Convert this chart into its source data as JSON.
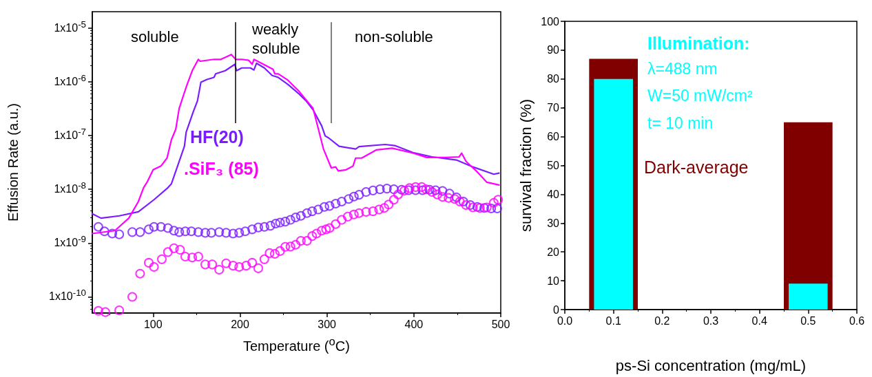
{
  "chart_data": [
    {
      "type": "line",
      "xlabel": "Temperature ($^{o}$C)",
      "ylabel": "Effusion Rate (a.u.)",
      "log": "y",
      "grid": false,
      "legend": false,
      "xlim": [
        30,
        500
      ],
      "xticks": [
        100,
        200,
        300,
        400,
        500
      ],
      "ylim": [
        5e-11,
        2e-05
      ],
      "yticks": [
        {
          "value": 1e-10,
          "label": "1x10$^{-10}$"
        },
        {
          "value": 1e-09,
          "label": "1x10$^{-9}$"
        },
        {
          "value": 1e-08,
          "label": "1x10$^{-8}$"
        },
        {
          "value": 1e-07,
          "label": "1x10$^{-7}$"
        },
        {
          "value": 1e-06,
          "label": "1x10$^{-6}$"
        },
        {
          "value": 1e-05,
          "label": "1x10$^{-5}$"
        }
      ],
      "annotations": [
        "soluble",
        "weakly soluble",
        "non-soluble"
      ],
      "ref_lines": [
        {
          "axis": "x",
          "value": 195,
          "color": "#000000"
        },
        {
          "axis": "x",
          "value": 305,
          "color": "#555555"
        }
      ],
      "series": [
        {
          "name": "HF(20)",
          "type": "line",
          "color": "#7a1cff",
          "marker": "none",
          "line_style": "solid",
          "x": [
            30,
            40,
            61,
            83,
            101,
            117,
            121,
            136,
            138,
            146,
            151,
            155,
            162,
            170,
            172,
            183,
            194,
            196,
            202,
            212,
            216,
            219,
            228,
            237,
            244,
            255,
            268,
            276,
            284,
            294,
            298,
            302,
            314,
            333,
            337,
            367,
            378,
            399,
            421,
            449,
            468,
            492,
            498
          ],
          "values": [
            3.5e-09,
            2.9e-09,
            3.2e-09,
            3.8e-09,
            6.4e-09,
            1.07e-08,
            1.26e-08,
            6.3e-08,
            1.15e-07,
            2.7e-07,
            4.4e-07,
            9.8e-07,
            1.1e-06,
            1.2e-06,
            1.4e-06,
            1.6e-06,
            2.1e-06,
            1.6e-06,
            1.8e-06,
            1.8e-06,
            1.65e-06,
            2.2e-06,
            1.8e-06,
            1.3e-06,
            1.2e-06,
            8.9e-07,
            5.9e-07,
            4.4e-07,
            3e-07,
            1.5e-07,
            9.8e-08,
            9e-08,
            6.3e-08,
            5.6e-08,
            6.2e-08,
            6.8e-08,
            6.5e-08,
            4.8e-08,
            4e-08,
            3.5e-08,
            2.6e-08,
            1.9e-08,
            2e-08
          ]
        },
        {
          "name": ".SiF₃ (85)",
          "type": "line",
          "color": "#ff00ff",
          "marker": "none",
          "line_style": "solid",
          "x": [
            30,
            56,
            72,
            83,
            89,
            93,
            100,
            109,
            116,
            121,
            126,
            130,
            138,
            145,
            152,
            154,
            170,
            178,
            190,
            195,
            202,
            210,
            214,
            216,
            238,
            240,
            244,
            255,
            268,
            284,
            288,
            296,
            305,
            310,
            313,
            322,
            330,
            333,
            340,
            357,
            375,
            399,
            415,
            437,
            452,
            455,
            460,
            473,
            484,
            498
          ],
          "values": [
            1.5e-09,
            1.7e-09,
            2.9e-09,
            5.9e-09,
            1.07e-08,
            1.35e-08,
            2.3e-08,
            2.7e-08,
            3.8e-08,
            8.3e-08,
            1.3e-07,
            3.2e-07,
            7.9e-07,
            1.6e-06,
            2.6e-06,
            2.4e-06,
            2.6e-06,
            2.6e-06,
            3.2e-06,
            2.6e-06,
            2.6e-06,
            2.5e-06,
            2.1e-06,
            2.6e-06,
            1.7e-06,
            1.4e-06,
            1.4e-06,
            1.07e-06,
            6.6e-07,
            3.2e-07,
            1.8e-07,
            5.6e-08,
            2.5e-08,
            2.6e-08,
            2.2e-08,
            2.3e-08,
            2.7e-08,
            3.8e-08,
            3.8e-08,
            5.4e-08,
            5.8e-08,
            4.7e-08,
            3.9e-08,
            3.9e-08,
            4e-08,
            4.7e-08,
            3.3e-08,
            2.1e-08,
            1.35e-08,
            1.2e-08
          ]
        },
        {
          "type": "scatter",
          "color": "#7a1cff",
          "marker": "circle",
          "x": [
            37,
            44,
            53,
            61,
            76,
            85,
            95,
            101,
            109,
            117,
            124,
            130,
            137,
            144,
            152,
            160,
            167,
            176,
            184,
            192,
            199,
            206,
            214,
            221,
            228,
            235,
            241,
            246,
            252,
            258,
            264,
            270,
            277,
            283,
            290,
            297,
            303,
            310,
            317,
            325,
            331,
            337,
            345,
            353,
            361,
            369,
            377,
            386,
            394,
            402,
            410,
            418,
            425,
            433,
            441,
            449,
            457,
            465,
            473,
            481,
            489,
            496
          ],
          "values": [
            2e-09,
            1.65e-09,
            1.5e-09,
            1.45e-09,
            1.6e-09,
            1.6e-09,
            1.8e-09,
            2e-09,
            2e-09,
            1.9e-09,
            1.7e-09,
            1.6e-09,
            1.65e-09,
            1.65e-09,
            1.6e-09,
            1.55e-09,
            1.55e-09,
            1.6e-09,
            1.55e-09,
            1.5e-09,
            1.55e-09,
            1.65e-09,
            1.8e-09,
            1.95e-09,
            2e-09,
            2.1e-09,
            2.3e-09,
            2.4e-09,
            2.5e-09,
            2.7e-09,
            3e-09,
            3.2e-09,
            3.6e-09,
            3.9e-09,
            4.2e-09,
            4.7e-09,
            4.9e-09,
            5.4e-09,
            5.9e-09,
            6.6e-09,
            7.3e-09,
            7.9e-09,
            8.9e-09,
            9.5e-09,
            1e-08,
            1.03e-08,
            1e-08,
            9.8e-09,
            9.6e-09,
            9.6e-09,
            9.6e-09,
            9.8e-09,
            9.6e-09,
            9.3e-09,
            8.3e-09,
            7.1e-09,
            5.9e-09,
            5.1e-09,
            4.7e-09,
            4.5e-09,
            4.4e-09,
            4.4e-09
          ]
        },
        {
          "type": "scatter",
          "color": "#ff00ff",
          "marker": "circle",
          "x": [
            37,
            45,
            61,
            76,
            85,
            95,
            101,
            110,
            117,
            124,
            131,
            137,
            145,
            152,
            160,
            168,
            176,
            184,
            192,
            199,
            207,
            214,
            221,
            228,
            234,
            240,
            246,
            252,
            258,
            264,
            270,
            277,
            283,
            288,
            294,
            299,
            303,
            310,
            317,
            324,
            331,
            337,
            345,
            353,
            360,
            366,
            371,
            377,
            382,
            389,
            395,
            402,
            409,
            414,
            421,
            427,
            433,
            440,
            447,
            453,
            460,
            468,
            476,
            484,
            492,
            497
          ],
          "values": [
            5.5e-11,
            5.2e-11,
            5.6e-11,
            1e-10,
            2.7e-10,
            4.3e-10,
            3.6e-10,
            5e-10,
            6.8e-10,
            8e-10,
            7.5e-10,
            5.6e-10,
            5.4e-10,
            5.6e-10,
            4e-10,
            4e-10,
            3.2e-10,
            4.2e-10,
            3.8e-10,
            3.6e-10,
            3.8e-10,
            4.3e-10,
            3.4e-10,
            5e-10,
            6.5e-10,
            6.3e-10,
            7.1e-10,
            8.5e-10,
            8.6e-10,
            9.3e-10,
            1.1e-09,
            1.1e-09,
            1.35e-09,
            1.5e-09,
            1.7e-09,
            1.8e-09,
            1.9e-09,
            2.25e-09,
            2.7e-09,
            3.1e-09,
            3.4e-09,
            3.6e-09,
            3.8e-09,
            3.9e-09,
            4.2e-09,
            4.5e-09,
            5.2e-09,
            6.4e-09,
            8e-09,
            9.4e-09,
            1.05e-08,
            1.1e-08,
            1.1e-08,
            1e-08,
            8.9e-09,
            8e-09,
            7.2e-09,
            6.9e-09,
            6.6e-09,
            5.9e-09,
            5.1e-09,
            4.6e-09,
            4.5e-09,
            4.6e-09,
            5.6e-09,
            6.4e-09
          ]
        }
      ]
    },
    {
      "type": "bar",
      "xlabel": "ps-Si concentration (mg/mL)",
      "ylabel": "survival fraction (%)",
      "grid": false,
      "legend": false,
      "xlim": [
        0,
        0.6
      ],
      "xticks": [
        {
          "value": 0,
          "label": "0.0"
        },
        0.1,
        0.2,
        0.3,
        0.4,
        0.5,
        0.6
      ],
      "ylim": [
        0,
        100
      ],
      "yticks": [
        0,
        10,
        20,
        30,
        40,
        50,
        60,
        70,
        80,
        90,
        100
      ],
      "annotations": [
        "λ=488 nm",
        "W=50 mW/cm²",
        "t= 10 min"
      ],
      "series": [
        {
          "name": "Dark-average",
          "color": "#800000",
          "x": [
            0.1,
            0.5
          ],
          "values": [
            87,
            65
          ]
        },
        {
          "name": "Illumination:",
          "color": "#00ffff",
          "x": [
            0.1,
            0.5
          ],
          "values": [
            80,
            9
          ]
        }
      ]
    }
  ]
}
